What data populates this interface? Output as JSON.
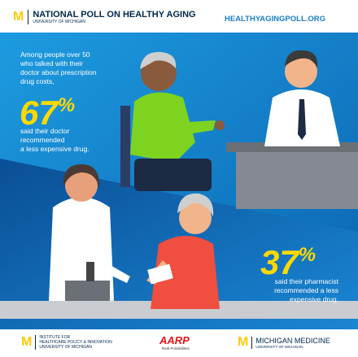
{
  "header": {
    "title": "NATIONAL POLL ON HEALTHY AGING",
    "subtitle": "UNIVERSITY OF MICHIGAN",
    "website": "HEALTHYAGINGPOLL.ORG"
  },
  "doctor_stat": {
    "intro": [
      "Among people over 50",
      "who talked with their",
      "doctor about prescription",
      "drug costs,"
    ],
    "number": "67",
    "unit": "%",
    "text": [
      "said their doctor",
      "recommended",
      "a less expensive drug."
    ]
  },
  "pharmacist_stat": {
    "number": "37",
    "unit": "%",
    "text": [
      "said their pharmacist",
      "recommended a less",
      "expensive drug."
    ]
  },
  "footer": {
    "ihpi": [
      "INSTITUTE FOR",
      "HEALTHCARE POLICY & INNOVATION",
      "UNIVERSITY OF MICHIGAN"
    ],
    "aarp": "AARP",
    "aarp_tagline": "Real Possibilities",
    "medicine": "MICHIGAN MEDICINE",
    "medicine_sub": "UNIVERSITY OF MICHIGAN"
  }
}
